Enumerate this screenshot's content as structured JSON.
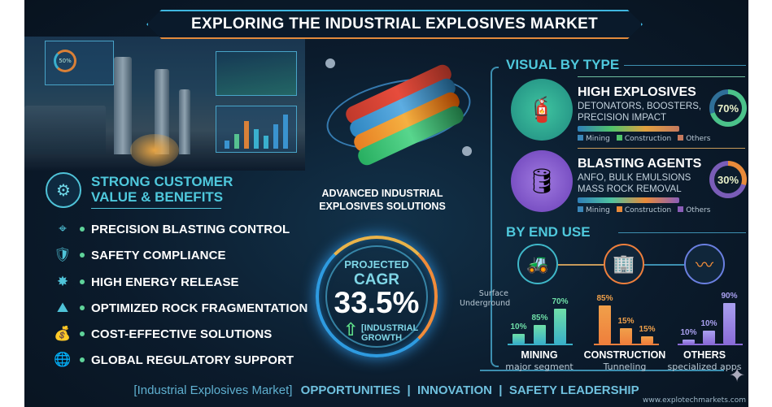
{
  "title": "EXPLORING THE INDUSTRIAL EXPLOSIVES MARKET",
  "hero": {
    "caption_line1": "ADVANCED INDUSTRIAL",
    "caption_line2": "EXPLOSIVES SOLUTIONS",
    "dashboard_gauge": "50%"
  },
  "benefits": {
    "heading_line1": "STRONG CUSTOMER",
    "heading_line2": "VALUE & BENEFITS",
    "items": [
      {
        "label": "PRECISION BLASTING CONTROL",
        "icon": "crosshair-icon"
      },
      {
        "label": "SAFETY COMPLIANCE",
        "icon": "shield-check-icon"
      },
      {
        "label": "HIGH ENERGY RELEASE",
        "icon": "burst-icon"
      },
      {
        "label": "OPTIMIZED ROCK FRAGMENTATION",
        "icon": "rock-icon"
      },
      {
        "label": "COST-EFFECTIVE SOLUTIONS",
        "icon": "money-bag-icon"
      },
      {
        "label": "GLOBAL REGULATORY SUPPORT",
        "icon": "globe-icon"
      }
    ]
  },
  "cagr": {
    "line1": "PROJECTED",
    "line2": "CAGR",
    "value": "33.5%",
    "sub1": "[INDUSTRIAL",
    "sub2": "GROWTH"
  },
  "by_type": {
    "heading": "VISUAL BY TYPE",
    "cards": [
      {
        "title": "HIGH EXPLOSIVES",
        "sub1": "DETONATORS, BOOSTERS,",
        "sub2": "PRECISION IMPACT",
        "share": "70%",
        "share_value": 70,
        "ring_color": "#4bc28a",
        "legend": [
          {
            "label": "Mining",
            "color": "#3a86b8"
          },
          {
            "label": "Construction",
            "color": "#4fc36b"
          },
          {
            "label": "Others",
            "color": "#c57a5e"
          }
        ]
      },
      {
        "title": "BLASTING AGENTS",
        "sub1": "ANFO, BULK EMULSIONS",
        "sub2": "MASS ROCK REMOVAL",
        "share": "30%",
        "share_value": 30,
        "ring_color": "#e88a3a",
        "icon_label": "ANFO",
        "legend": [
          {
            "label": "Mining",
            "color": "#3a86b8"
          },
          {
            "label": "Construction",
            "color": "#e88a3a"
          },
          {
            "label": "Others",
            "color": "#8a5db8"
          }
        ]
      }
    ]
  },
  "by_end_use": {
    "heading": "BY END USE",
    "mining_sub_labels": [
      "Surface",
      "Underground"
    ],
    "groups": [
      {
        "name": "MINING",
        "sub": "major segment",
        "values": [
          "10%",
          "85%",
          "70%"
        ],
        "color": "#3ab0c8",
        "label_color": "#6fe0a8"
      },
      {
        "name": "CONSTRUCTION",
        "sub": "Tunneling",
        "values": [
          "85%",
          "15%",
          "15%"
        ],
        "color": "#ef7f3c",
        "label_color": "#f0a04a"
      },
      {
        "name": "OTHERS",
        "sub": "specialized apps",
        "values": [
          "10%",
          "10%",
          "90%"
        ],
        "color": "#8a6cd8",
        "label_color": "#a9a0f0"
      }
    ]
  },
  "footer": {
    "bracket": "[Industrial Explosives Market]",
    "tagline": "OPPORTUNITIES  |  INNOVATION  |  SAFETY LEADERSHIP",
    "url": "www.explotechmarkets.com"
  }
}
